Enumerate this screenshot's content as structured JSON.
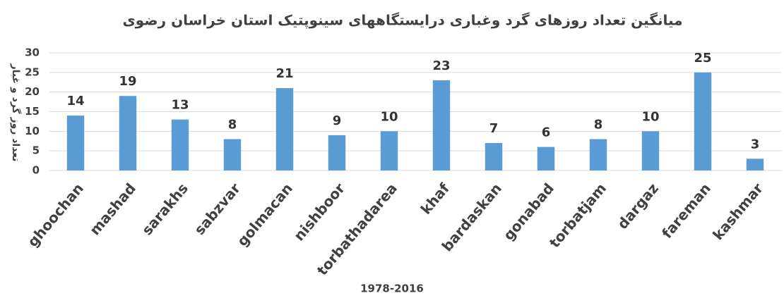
{
  "chart_data": {
    "type": "bar",
    "title": "میانگین تعداد روزهای  گرد وغباری درایستگاههای سینوپتیک استان خراسان رضوی",
    "y_label": "تعداد روز گرد و غبار",
    "x_label": "1978-2016",
    "categories": [
      "ghoochan",
      "mashad",
      "sarakhs",
      "sabzvar",
      "golmacan",
      "nishboor",
      "torbathadarea",
      "khaf",
      "bardaskan",
      "gonabad",
      "torbatjam",
      "dargaz",
      "fareman",
      "kashmar"
    ],
    "values": [
      14,
      19,
      13,
      8,
      21,
      9,
      10,
      23,
      7,
      6,
      8,
      10,
      25,
      3
    ],
    "color": "#5b9bd5",
    "ylim": [
      0,
      30
    ],
    "yticks": [
      0,
      5,
      10,
      15,
      20,
      25,
      30
    ],
    "grid": true
  }
}
